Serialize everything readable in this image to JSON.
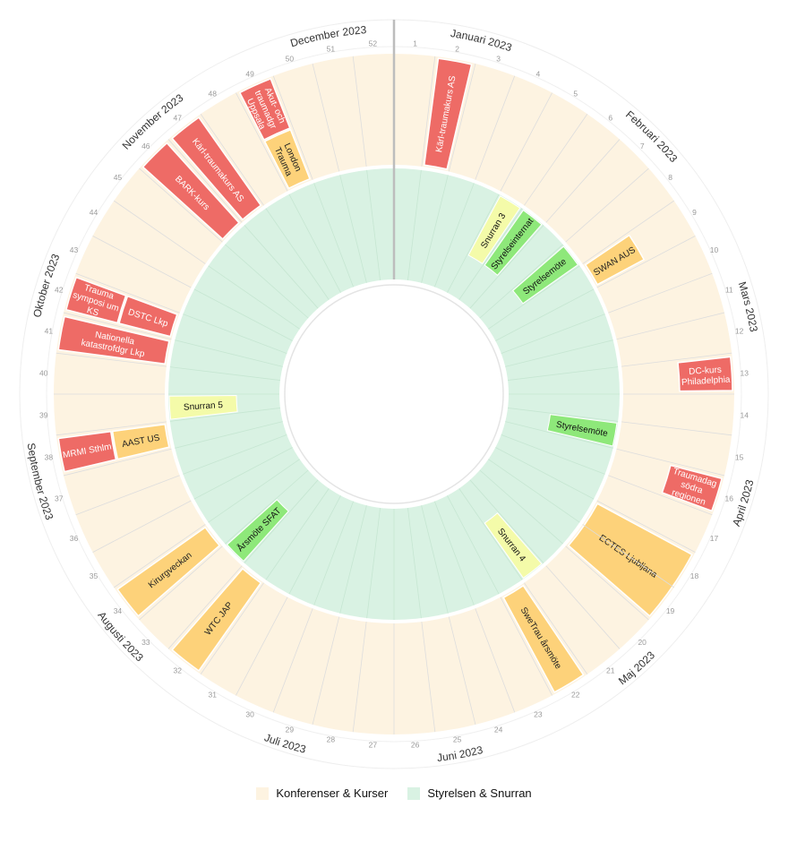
{
  "colors": {
    "conf_bg": "#fdf3e1",
    "board_bg": "#d9f2e3",
    "red": "#ee6b66",
    "orange": "#fdd27a",
    "green": "#8ee87a",
    "yellow": "#f4fba9",
    "divider": "#dddddd"
  },
  "months": [
    {
      "label": "Januari 2023",
      "week": 2
    },
    {
      "label": "Februari 2023",
      "week": 6.5
    },
    {
      "label": "Mars 2023",
      "week": 11
    },
    {
      "label": "April 2023",
      "week": 15.5
    },
    {
      "label": "Maj 2023",
      "week": 20
    },
    {
      "label": "Juni 2023",
      "week": 24.5
    },
    {
      "label": "Juli 2023",
      "week": 28.5
    },
    {
      "label": "Augusti 2023",
      "week": 33
    },
    {
      "label": "September 2023",
      "week": 37
    },
    {
      "label": "Oktober 2023",
      "week": 41.5
    },
    {
      "label": "November 2023",
      "week": 46
    },
    {
      "label": "December 2023",
      "week": 50.5
    }
  ],
  "weeks": [
    "1",
    "2",
    "3",
    "4",
    "5",
    "6",
    "7",
    "8",
    "9",
    "10",
    "11",
    "12",
    "13",
    "14",
    "15",
    "16",
    "17",
    "18",
    "19",
    "20",
    "21",
    "22",
    "23",
    "24",
    "25",
    "26",
    "27",
    "28",
    "29",
    "30",
    "31",
    "32",
    "33",
    "34",
    "35",
    "36",
    "37",
    "38",
    "39",
    "40",
    "41",
    "42",
    "43",
    "44",
    "45",
    "46",
    "47",
    "48",
    "49",
    "50",
    "51",
    "52"
  ],
  "outer_events": [
    {
      "label": "Kärl-traumakurs AS",
      "start": 2,
      "end": 2,
      "lane": "full",
      "color": "red",
      "text": "#ffffff"
    },
    {
      "label": "SWAN AUS",
      "start": 9,
      "end": 9,
      "lane": "inner",
      "color": "orange",
      "text": "#222222"
    },
    {
      "label": "DC-kurs Philadelphia",
      "start": 13,
      "end": 13,
      "lane": "outer",
      "color": "red",
      "text": "#ffffff"
    },
    {
      "label": "Traumadag södra regionen",
      "start": 16,
      "end": 16,
      "lane": "outer",
      "color": "red",
      "text": "#ffffff"
    },
    {
      "label": "ECTES Ljubljana",
      "start": 18,
      "end": 19,
      "lane": "full",
      "color": "orange",
      "text": "#222222"
    },
    {
      "label": "SweTrau årsmöte",
      "start": 22,
      "end": 22,
      "lane": "full",
      "color": "orange",
      "text": "#222222"
    },
    {
      "label": "WTC JAP",
      "start": 32,
      "end": 32,
      "lane": "full",
      "color": "orange",
      "text": "#222222"
    },
    {
      "label": "Kirurgveckan",
      "start": 34,
      "end": 34,
      "lane": "full",
      "color": "orange",
      "text": "#222222"
    },
    {
      "label": "MRMI Sthlm",
      "start": 38,
      "end": 38,
      "lane": "outer",
      "color": "red",
      "text": "#ffffff"
    },
    {
      "label": "AAST US",
      "start": 38,
      "end": 38,
      "lane": "inner",
      "color": "orange",
      "text": "#222222"
    },
    {
      "label": "Nationella katastrofdgr Lkp",
      "start": 41,
      "end": 41,
      "lane": "full",
      "color": "red",
      "text": "#ffffff"
    },
    {
      "label": "Trauma symposi um KS",
      "start": 42,
      "end": 42,
      "lane": "outer",
      "color": "red",
      "text": "#ffffff"
    },
    {
      "label": "DSTC Lkp",
      "start": 42,
      "end": 42,
      "lane": "inner",
      "color": "red",
      "text": "#ffffff"
    },
    {
      "label": "BARK-kurs",
      "start": 46,
      "end": 46,
      "lane": "full",
      "color": "red",
      "text": "#ffffff"
    },
    {
      "label": "Kärl-traumakurs AS",
      "start": 47,
      "end": 47,
      "lane": "full",
      "color": "red",
      "text": "#ffffff"
    },
    {
      "label": "Akut- och traumadgr Uppsala",
      "start": 49,
      "end": 49,
      "lane": "outer",
      "color": "red",
      "text": "#ffffff"
    },
    {
      "label": "London Trauma",
      "start": 49,
      "end": 49,
      "lane": "inner",
      "color": "orange",
      "text": "#222222"
    }
  ],
  "inner_events": [
    {
      "label": "Snurran 3",
      "week": 5,
      "color": "yellow"
    },
    {
      "label": "Styrelseinternat",
      "week": 6,
      "color": "green"
    },
    {
      "label": "Styrelsemöte",
      "week": 8,
      "color": "green"
    },
    {
      "label": "Styrelsemöte",
      "week": 15,
      "color": "green"
    },
    {
      "label": "Snurran 4",
      "week": 21,
      "color": "yellow"
    },
    {
      "label": "Årsmöte SFAT",
      "week": 33,
      "color": "green"
    },
    {
      "label": "Snurran 5",
      "week": 39,
      "color": "yellow"
    }
  ],
  "legend": [
    {
      "label": "Konferenser & Kurser",
      "color": "#fdf3e1"
    },
    {
      "label": "Styrelsen &  Snurran",
      "color": "#d9f2e3"
    }
  ]
}
